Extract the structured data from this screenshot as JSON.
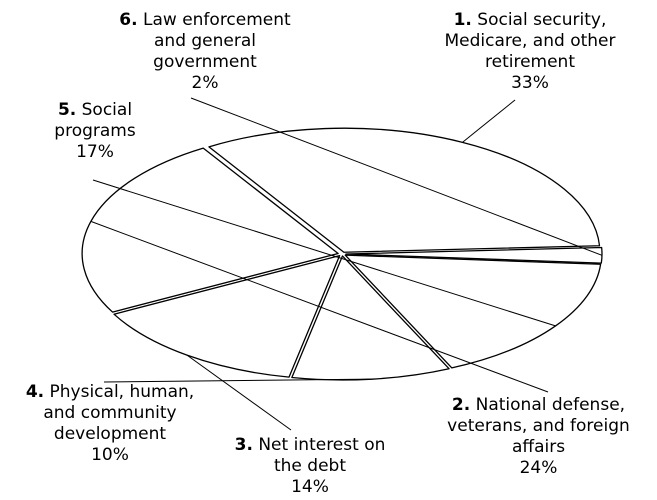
{
  "chart_data": {
    "type": "pie",
    "style": "3d-exploded-outline",
    "colors": {
      "fill": "#ffffff",
      "stroke": "#000000"
    },
    "slices": [
      {
        "number": "1.",
        "lines": [
          "Social security,",
          "Medicare, and other",
          "retirement"
        ],
        "percent_label": "33%",
        "value": 33
      },
      {
        "number": "2.",
        "lines": [
          "National defense,",
          "veterans, and foreign",
          "affairs"
        ],
        "percent_label": "24%",
        "value": 24
      },
      {
        "number": "3.",
        "lines": [
          "Net interest on",
          "the debt"
        ],
        "percent_label": "14%",
        "value": 14
      },
      {
        "number": "4.",
        "lines": [
          "Physical, human,",
          "and community",
          "development"
        ],
        "percent_label": "10%",
        "value": 10
      },
      {
        "number": "5.",
        "lines": [
          "Social",
          "programs"
        ],
        "percent_label": "17%",
        "value": 17
      },
      {
        "number": "6.",
        "lines": [
          "Law enforcement",
          "and general",
          "government"
        ],
        "percent_label": "2%",
        "value": 2
      }
    ]
  }
}
